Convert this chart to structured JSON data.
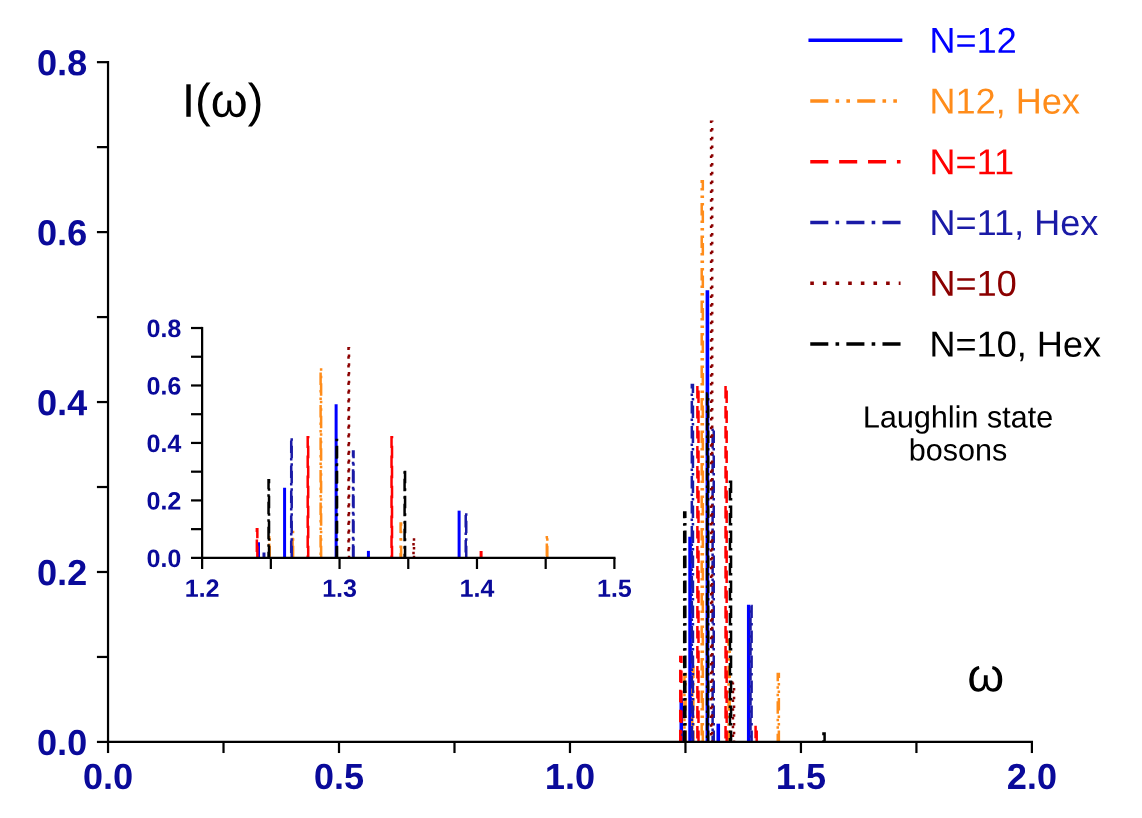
{
  "chart_data": [
    {
      "type": "bar",
      "ylabel": "I(ω)",
      "xlabel": "ω",
      "annotations": [
        "Laughlin state\nbosons"
      ],
      "legend": "top right",
      "xlim": [
        0,
        2
      ],
      "xticks": [
        {
          "value": 0,
          "label": "0.0"
        },
        {
          "value": 0.25,
          "label": null
        },
        {
          "value": 0.5,
          "label": "0.5"
        },
        {
          "value": 0.75,
          "label": null
        },
        {
          "value": 1,
          "label": "1.0"
        },
        {
          "value": 1.25,
          "label": null
        },
        {
          "value": 1.5,
          "label": "1.5"
        },
        {
          "value": 1.75,
          "label": null
        },
        {
          "value": 2,
          "label": "2.0"
        }
      ],
      "ylim": [
        0,
        0.8
      ],
      "yticks": [
        {
          "value": 0,
          "label": "0.0"
        },
        {
          "value": 0.1,
          "label": null
        },
        {
          "value": 0.2,
          "label": "0.2"
        },
        {
          "value": 0.3,
          "label": null
        },
        {
          "value": 0.4,
          "label": "0.4"
        },
        {
          "value": 0.5,
          "label": null
        },
        {
          "value": 0.6,
          "label": "0.6"
        },
        {
          "value": 0.7,
          "label": null
        },
        {
          "value": 0.8,
          "label": "0.8"
        }
      ],
      "series": [
        {
          "name": "N=12",
          "color": "#0000ff",
          "line_style": "solid",
          "x": [
            1.241,
            1.26,
            1.2975,
            1.321,
            1.387
          ],
          "values": [
            0.05,
            0.24,
            0.53,
            0.02,
            0.16
          ]
        },
        {
          "name": "N12, Hex",
          "color": "#ff8c1a",
          "line_style": "dashdotdot",
          "x": [
            1.249,
            1.266,
            1.2864,
            1.3446,
            1.451
          ],
          "values": [
            0.08,
            0.09,
            0.66,
            0.12,
            0.08
          ]
        },
        {
          "name": "N=11",
          "color": "#ff0000",
          "line_style": "dashed",
          "x": [
            1.24,
            1.277,
            1.338,
            1.403
          ],
          "values": [
            0.1,
            0.42,
            0.42,
            0.02
          ]
        },
        {
          "name": "N=11, Hex",
          "color": "#1a1aa6",
          "line_style": "dashdot",
          "x": [
            1.245,
            1.265,
            1.31,
            1.392
          ],
          "values": [
            0.014,
            0.42,
            0.37,
            0.16
          ]
        },
        {
          "name": "N=10",
          "color": "#8b0000",
          "line_style": "dotted",
          "x": [
            1.3067,
            1.354
          ],
          "values": [
            0.73,
            0.07
          ]
        },
        {
          "name": "N=10, Hex",
          "color": "#000000",
          "line_style": "dashdot",
          "x": [
            1.2485,
            1.298,
            1.3475,
            1.55
          ],
          "values": [
            0.27,
            0.41,
            0.31,
            0.01
          ]
        }
      ]
    },
    {
      "type": "bar",
      "xlim": [
        1.2,
        1.5
      ],
      "xticks": [
        {
          "value": 1.2,
          "label": "1.2"
        },
        {
          "value": 1.25,
          "label": null
        },
        {
          "value": 1.3,
          "label": "1.3"
        },
        {
          "value": 1.35,
          "label": null
        },
        {
          "value": 1.4,
          "label": "1.4"
        },
        {
          "value": 1.45,
          "label": null
        },
        {
          "value": 1.5,
          "label": "1.5"
        }
      ],
      "ylim": [
        0,
        0.8
      ],
      "yticks": [
        {
          "value": 0,
          "label": "0.0"
        },
        {
          "value": 0.1,
          "label": null
        },
        {
          "value": 0.2,
          "label": "0.2"
        },
        {
          "value": 0.3,
          "label": null
        },
        {
          "value": 0.4,
          "label": "0.4"
        },
        {
          "value": 0.5,
          "label": null
        },
        {
          "value": 0.6,
          "label": "0.6"
        },
        {
          "value": 0.7,
          "label": null
        },
        {
          "value": 0.8,
          "label": "0.8"
        }
      ],
      "series": [
        {
          "color": "#0000ff",
          "line_style": "solid",
          "x": [
            1.241,
            1.26,
            1.2975,
            1.321,
            1.387
          ],
          "values": [
            0.05,
            0.24,
            0.53,
            0.02,
            0.16
          ]
        },
        {
          "color": "#ff8c1a",
          "line_style": "dashdotdot",
          "x": [
            1.249,
            1.266,
            1.2864,
            1.3446,
            1.451
          ],
          "values": [
            0.08,
            0.09,
            0.66,
            0.12,
            0.08
          ]
        },
        {
          "color": "#ff0000",
          "line_style": "dashed",
          "x": [
            1.24,
            1.277,
            1.338,
            1.403
          ],
          "values": [
            0.1,
            0.42,
            0.42,
            0.02
          ]
        },
        {
          "color": "#1a1aa6",
          "line_style": "dashdot",
          "x": [
            1.245,
            1.265,
            1.31,
            1.392
          ],
          "values": [
            0.014,
            0.42,
            0.37,
            0.16
          ]
        },
        {
          "color": "#8b0000",
          "line_style": "dotted",
          "x": [
            1.3067,
            1.354
          ],
          "values": [
            0.73,
            0.07
          ]
        },
        {
          "color": "#000000",
          "line_style": "dashdot",
          "x": [
            1.2485,
            1.298,
            1.3475
          ],
          "values": [
            0.27,
            0.41,
            0.31
          ]
        }
      ]
    }
  ]
}
